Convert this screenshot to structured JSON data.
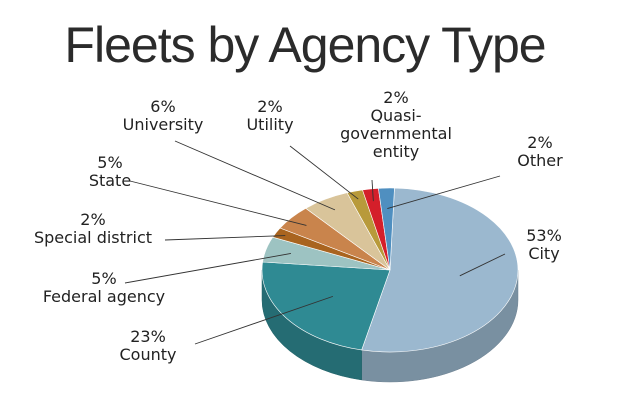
{
  "chart_data": {
    "type": "pie",
    "title": "Fleets by Agency Type",
    "slices": [
      {
        "name": "City",
        "value": 53,
        "label": "53%",
        "label_lines": [
          "53%",
          "City"
        ],
        "color": "#9bb8cf"
      },
      {
        "name": "County",
        "value": 23,
        "label": "23%",
        "label_lines": [
          "23%",
          "County"
        ],
        "color": "#2f8a93"
      },
      {
        "name": "Federal agency",
        "value": 5,
        "label": "5%",
        "label_lines": [
          "5%",
          "Federal agency"
        ],
        "color": "#9dc3c2"
      },
      {
        "name": "Special district",
        "value": 2,
        "label": "2%",
        "label_lines": [
          "2%",
          "Special district"
        ],
        "color": "#a9641f"
      },
      {
        "name": "State",
        "value": 5,
        "label": "5%",
        "label_lines": [
          "5%",
          "State"
        ],
        "color": "#c9844c"
      },
      {
        "name": "University",
        "value": 6,
        "label": "6%",
        "label_lines": [
          "6%",
          "University"
        ],
        "color": "#d9c49a"
      },
      {
        "name": "Utility",
        "value": 2,
        "label": "2%",
        "label_lines": [
          "2%",
          "Utility"
        ],
        "color": "#b89a3b"
      },
      {
        "name": "Quasi-governmental entity",
        "value": 2,
        "label": "2%",
        "label_lines": [
          "2%",
          "Quasi-",
          "governmental",
          "entity"
        ],
        "color": "#d41f2a"
      },
      {
        "name": "Other",
        "value": 2,
        "label": "2%",
        "label_lines": [
          "2%",
          "Other"
        ],
        "color": "#4f8fc0"
      }
    ],
    "legend": "none",
    "style": "3d"
  }
}
